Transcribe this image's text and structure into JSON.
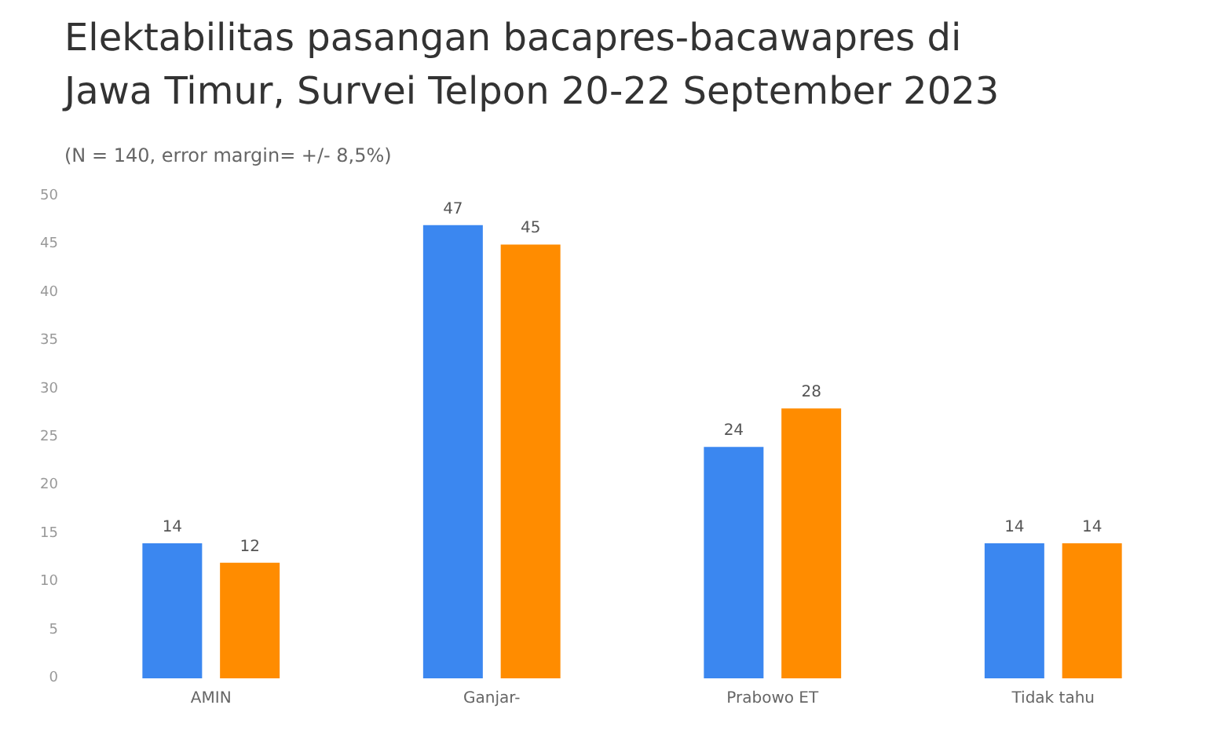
{
  "chart_data": {
    "type": "bar",
    "title": "Elektabilitas pasangan bacapres-bacawapres di\nJawa Timur, Survei Telpon 20-22 September 2023",
    "subtitle": "(N = 140, error margin= +/- 8,5%)",
    "categories": [
      "AMIN",
      "Ganjar-",
      "Prabowo ET",
      "Tidak tahu"
    ],
    "series": [
      {
        "color": "#3b87f0",
        "values": [
          14,
          47,
          24,
          14
        ]
      },
      {
        "color": "#ff8c00",
        "values": [
          12,
          45,
          28,
          14
        ]
      }
    ],
    "ylim": [
      0,
      50
    ],
    "yticks": [
      0,
      5,
      10,
      15,
      20,
      25,
      30,
      35,
      40,
      45,
      50
    ],
    "grid": false,
    "data_labels": true
  }
}
